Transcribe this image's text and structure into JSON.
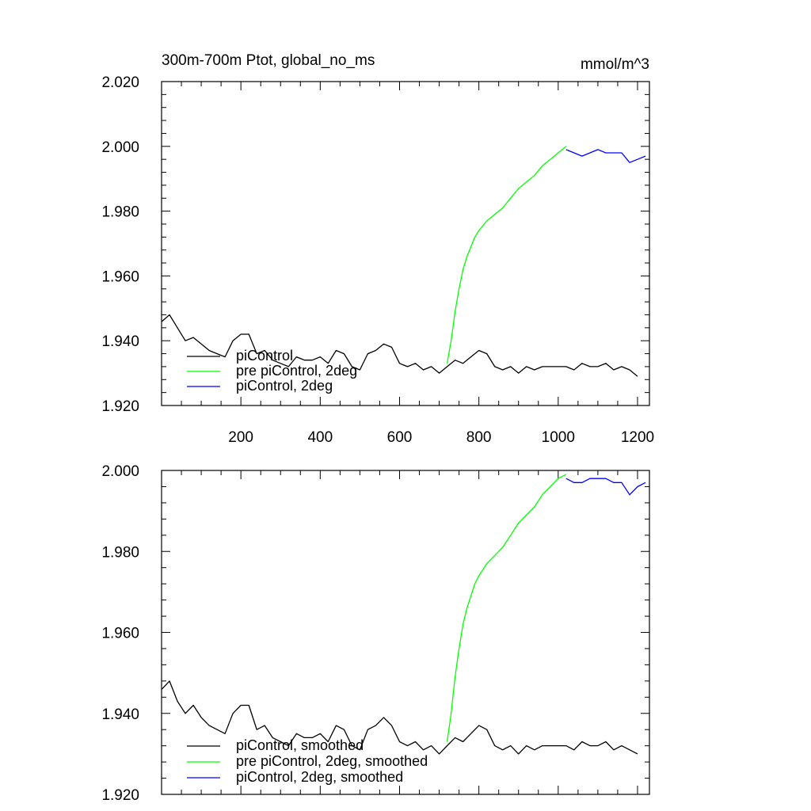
{
  "chart_data": [
    {
      "type": "line",
      "title": "300m-700m Ptot, global_no_ms",
      "units": "mmol/m^3",
      "xlim": [
        0,
        1230
      ],
      "ylim": [
        1.92,
        2.02
      ],
      "xticks": [
        200,
        400,
        600,
        800,
        1000,
        1200
      ],
      "xtick_labels": [
        "200",
        "400",
        "600",
        "800",
        "1000",
        "1200"
      ],
      "yticks": [
        1.92,
        1.94,
        1.96,
        1.98,
        2.0,
        2.02
      ],
      "ytick_labels": [
        "1.920",
        "1.940",
        "1.960",
        "1.980",
        "2.000",
        "2.020"
      ],
      "legend": "bottom-left",
      "series": [
        {
          "name": "piControl",
          "color": "#000000",
          "x": [
            1,
            20,
            40,
            60,
            80,
            100,
            120,
            140,
            160,
            180,
            200,
            220,
            240,
            260,
            280,
            300,
            320,
            340,
            360,
            380,
            400,
            420,
            440,
            460,
            480,
            500,
            520,
            540,
            560,
            580,
            600,
            620,
            640,
            660,
            680,
            700,
            720,
            740,
            760,
            780,
            800,
            820,
            840,
            860,
            880,
            900,
            920,
            940,
            960,
            980,
            1000,
            1020,
            1040,
            1060,
            1080,
            1100,
            1120,
            1140,
            1160,
            1180,
            1200
          ],
          "y": [
            1.946,
            1.948,
            1.944,
            1.94,
            1.941,
            1.939,
            1.937,
            1.936,
            1.935,
            1.94,
            1.942,
            1.942,
            1.936,
            1.937,
            1.934,
            1.933,
            1.932,
            1.935,
            1.934,
            1.934,
            1.935,
            1.933,
            1.937,
            1.936,
            1.932,
            1.931,
            1.936,
            1.937,
            1.939,
            1.938,
            1.933,
            1.932,
            1.933,
            1.931,
            1.932,
            1.93,
            1.932,
            1.934,
            1.933,
            1.935,
            1.937,
            1.936,
            1.932,
            1.931,
            1.932,
            1.93,
            1.932,
            1.931,
            1.932,
            1.932,
            1.932,
            1.932,
            1.931,
            1.933,
            1.932,
            1.932,
            1.933,
            1.931,
            1.932,
            1.931,
            1.929
          ]
        },
        {
          "name": "pre piControl, 2deg",
          "color": "#00ff00",
          "x": [
            720,
            730,
            740,
            750,
            760,
            770,
            780,
            790,
            800,
            820,
            840,
            860,
            880,
            900,
            920,
            940,
            960,
            980,
            1000,
            1020
          ],
          "y": [
            1.933,
            1.94,
            1.949,
            1.956,
            1.962,
            1.966,
            1.969,
            1.972,
            1.974,
            1.977,
            1.979,
            1.981,
            1.984,
            1.987,
            1.989,
            1.991,
            1.994,
            1.996,
            1.998,
            2.0
          ]
        },
        {
          "name": "piControl, 2deg",
          "color": "#0000ff",
          "x": [
            1020,
            1040,
            1060,
            1080,
            1100,
            1120,
            1140,
            1160,
            1180,
            1200,
            1220
          ],
          "y": [
            1.999,
            1.998,
            1.997,
            1.998,
            1.999,
            1.998,
            1.998,
            1.998,
            1.995,
            1.996,
            1.997
          ]
        }
      ]
    },
    {
      "type": "line",
      "xlim": [
        0,
        1230
      ],
      "ylim": [
        1.92,
        2.0
      ],
      "xticks": [
        200,
        400,
        600,
        800,
        1000,
        1200
      ],
      "yticks": [
        1.92,
        1.94,
        1.96,
        1.98,
        2.0
      ],
      "ytick_labels": [
        "1.920",
        "1.940",
        "1.960",
        "1.980",
        "2.000"
      ],
      "legend": "bottom-left",
      "series": [
        {
          "name": "piControl, smoothed",
          "color": "#000000",
          "x": [
            1,
            20,
            40,
            60,
            80,
            100,
            120,
            140,
            160,
            180,
            200,
            220,
            240,
            260,
            280,
            300,
            320,
            340,
            360,
            380,
            400,
            420,
            440,
            460,
            480,
            500,
            520,
            540,
            560,
            580,
            600,
            620,
            640,
            660,
            680,
            700,
            720,
            740,
            760,
            780,
            800,
            820,
            840,
            860,
            880,
            900,
            920,
            940,
            960,
            980,
            1000,
            1020,
            1040,
            1060,
            1080,
            1100,
            1120,
            1140,
            1160,
            1180,
            1200
          ],
          "y": [
            1.946,
            1.948,
            1.943,
            1.94,
            1.942,
            1.939,
            1.937,
            1.936,
            1.935,
            1.94,
            1.942,
            1.942,
            1.936,
            1.937,
            1.934,
            1.933,
            1.932,
            1.935,
            1.934,
            1.934,
            1.935,
            1.933,
            1.937,
            1.936,
            1.932,
            1.931,
            1.936,
            1.937,
            1.939,
            1.937,
            1.933,
            1.932,
            1.933,
            1.931,
            1.932,
            1.93,
            1.932,
            1.934,
            1.933,
            1.935,
            1.937,
            1.936,
            1.932,
            1.931,
            1.932,
            1.93,
            1.932,
            1.931,
            1.932,
            1.932,
            1.932,
            1.932,
            1.931,
            1.933,
            1.932,
            1.932,
            1.933,
            1.931,
            1.932,
            1.931,
            1.93
          ]
        },
        {
          "name": "pre piControl, 2deg, smoothed",
          "color": "#00ff00",
          "x": [
            720,
            730,
            740,
            750,
            760,
            770,
            780,
            790,
            800,
            820,
            840,
            860,
            880,
            900,
            920,
            940,
            960,
            980,
            1000,
            1020
          ],
          "y": [
            1.933,
            1.94,
            1.949,
            1.956,
            1.962,
            1.966,
            1.969,
            1.972,
            1.974,
            1.977,
            1.979,
            1.981,
            1.984,
            1.987,
            1.989,
            1.991,
            1.994,
            1.996,
            1.998,
            1.999
          ]
        },
        {
          "name": "piControl, 2deg, smoothed",
          "color": "#0000ff",
          "x": [
            1020,
            1040,
            1060,
            1080,
            1100,
            1120,
            1140,
            1160,
            1180,
            1200,
            1220
          ],
          "y": [
            1.998,
            1.997,
            1.997,
            1.998,
            1.998,
            1.998,
            1.997,
            1.997,
            1.994,
            1.996,
            1.997
          ]
        }
      ]
    }
  ]
}
